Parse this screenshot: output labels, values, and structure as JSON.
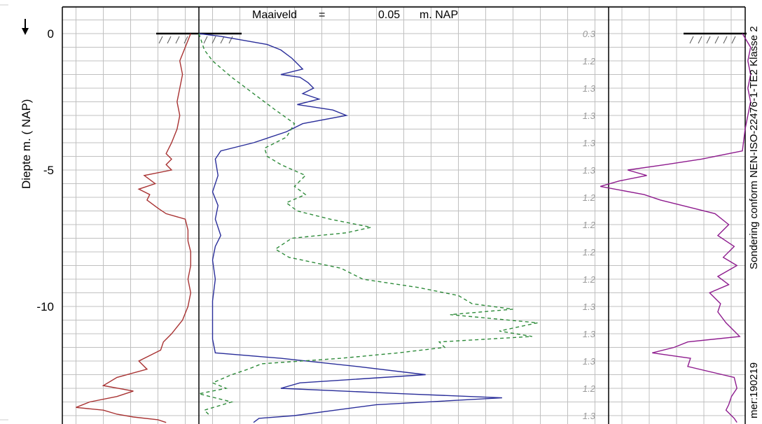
{
  "chart_data": {
    "type": "line",
    "title": "Maaiveld",
    "header": {
      "label": "Maaiveld",
      "equals": "=",
      "value": "0.05",
      "unit": "m. NAP"
    },
    "ylabel": "Diepte m. ( NAP)",
    "depth_ticks": [
      "0",
      "-5",
      "-10"
    ],
    "depth_tick_values": [
      0,
      -5,
      -10
    ],
    "ylim": [
      0.25,
      -14.25
    ],
    "grid": true,
    "side_label_right": "Sondering conform NEN-ISO-22476-1-TE2 Klasse 2",
    "side_label_bottom": "mer:190219",
    "ratio_labels": [
      {
        "depth": 0,
        "text": "0.3"
      },
      {
        "depth": -1,
        "text": "1.2"
      },
      {
        "depth": -2,
        "text": "1.3"
      },
      {
        "depth": -3,
        "text": "1.3"
      },
      {
        "depth": -4,
        "text": "1.3"
      },
      {
        "depth": -5,
        "text": "1.3"
      },
      {
        "depth": -6,
        "text": "1.2"
      },
      {
        "depth": -7,
        "text": "1.2"
      },
      {
        "depth": -8,
        "text": "1.2"
      },
      {
        "depth": -9,
        "text": "1.2"
      },
      {
        "depth": -10,
        "text": "1.3"
      },
      {
        "depth": -11,
        "text": "1.3"
      },
      {
        "depth": -12,
        "text": "1.3"
      },
      {
        "depth": -13,
        "text": "1.2"
      },
      {
        "depth": -14,
        "text": "1.3"
      }
    ],
    "series": [
      {
        "key": "left_red",
        "panel": "main",
        "color": "#a83232",
        "dash": "",
        "x_div": [
          -0.3,
          -0.5,
          -0.7,
          -0.6,
          -0.7,
          -0.8,
          -0.7,
          -0.8,
          -1.0,
          -1.2,
          -1.0,
          -1.2,
          -1.0,
          -2.0,
          -1.6,
          -2.2,
          -1.8,
          -1.9,
          -1.5,
          -1.2,
          -0.5,
          -0.4,
          -0.4,
          -0.3,
          -0.3,
          -0.4,
          -0.3,
          -0.4,
          -0.6,
          -1.0,
          -1.3,
          -1.4,
          -2.2,
          -1.9,
          -3.0,
          -3.5,
          -2.4,
          -3.0,
          -4.0,
          -4.5,
          -3.5,
          -3.0,
          -2.4,
          -1.5,
          -1.2
        ],
        "y": [
          0,
          -0.5,
          -1.0,
          -1.5,
          -2.0,
          -2.5,
          -3.0,
          -3.5,
          -4.0,
          -4.4,
          -4.6,
          -4.8,
          -5.0,
          -5.2,
          -5.5,
          -5.7,
          -5.9,
          -6.1,
          -6.4,
          -6.6,
          -6.8,
          -7.2,
          -7.6,
          -8.0,
          -8.5,
          -9.0,
          -9.5,
          -10.0,
          -10.5,
          -11.0,
          -11.3,
          -11.6,
          -12.0,
          -12.3,
          -12.6,
          -12.9,
          -13.1,
          -13.3,
          -13.5,
          -13.7,
          -13.8,
          -13.95,
          -14.05,
          -14.15,
          -14.25
        ]
      },
      {
        "key": "blue",
        "panel": "main",
        "color": "#2a2e9a",
        "dash": "",
        "x_div": [
          0,
          0.8,
          2.5,
          3.0,
          3.4,
          3.6,
          3.8,
          3.0,
          3.7,
          4.0,
          4.2,
          3.8,
          4.4,
          3.6,
          4.9,
          5.4,
          3.8,
          3.2,
          2.0,
          0.8,
          0.6,
          0.7,
          0.5,
          0.7,
          0.6,
          0.8,
          0.6,
          0.5,
          0.6,
          0.5,
          0.5,
          0.5,
          0.6,
          3.0,
          5.8,
          8.3,
          3.7,
          3.0,
          7.5,
          11.1,
          6.5,
          5.0,
          3.5,
          2.2,
          2.0
        ],
        "y": [
          0,
          -0.1,
          -0.4,
          -0.6,
          -0.9,
          -1.1,
          -1.3,
          -1.5,
          -1.6,
          -1.8,
          -2.0,
          -2.2,
          -2.4,
          -2.6,
          -2.8,
          -3.0,
          -3.3,
          -3.6,
          -4.0,
          -4.3,
          -4.6,
          -5.2,
          -5.8,
          -6.3,
          -6.8,
          -7.4,
          -7.8,
          -8.3,
          -9.0,
          -9.8,
          -10.5,
          -11.2,
          -11.7,
          -11.9,
          -12.2,
          -12.5,
          -12.8,
          -13.0,
          -13.2,
          -13.35,
          -13.6,
          -13.8,
          -14.0,
          -14.1,
          -14.25
        ]
      },
      {
        "key": "green_dashed",
        "panel": "main",
        "color": "#2e8b3a",
        "dash": "5,4",
        "x_div": [
          0,
          0.2,
          0.5,
          1.2,
          2.0,
          2.8,
          3.5,
          3.2,
          2.4,
          2.5,
          3.0,
          3.9,
          3.5,
          3.9,
          3.2,
          3.6,
          4.8,
          6.3,
          5.4,
          3.4,
          2.8,
          3.3,
          5.2,
          6.0,
          8.0,
          9.5,
          10.0,
          11.5,
          9.2,
          12.4,
          11.0,
          12.2,
          8.8,
          9.0,
          7.3,
          5.2,
          2.3,
          1.8,
          1.2,
          0.5,
          1.0,
          0.0,
          1.2,
          0.2,
          0.4
        ],
        "y": [
          0,
          -0.6,
          -1.0,
          -1.6,
          -2.2,
          -2.8,
          -3.3,
          -3.8,
          -4.2,
          -4.5,
          -4.8,
          -5.2,
          -5.6,
          -5.9,
          -6.2,
          -6.5,
          -6.8,
          -7.1,
          -7.3,
          -7.5,
          -7.9,
          -8.2,
          -8.6,
          -9.0,
          -9.3,
          -9.6,
          -9.9,
          -10.1,
          -10.3,
          -10.6,
          -10.9,
          -11.1,
          -11.3,
          -11.5,
          -11.7,
          -11.9,
          -12.1,
          -12.3,
          -12.5,
          -12.8,
          -13.0,
          -13.2,
          -13.5,
          -13.8,
          -14.0
        ]
      },
      {
        "key": "right_purple",
        "panel": "right",
        "color": "#8e1c8e",
        "dash": "",
        "x_div": [
          0,
          0.3,
          0.2,
          0.3,
          0.2,
          0.3,
          0.2,
          0.1,
          0.0,
          -1.5,
          -2.8,
          -4.2,
          -3.5,
          -4.5,
          -5.2,
          -3.6,
          -3.0,
          -2.2,
          -1.0,
          -0.5,
          -0.9,
          -0.3,
          -0.7,
          -0.2,
          -0.9,
          -0.5,
          -1.2,
          -0.8,
          -0.9,
          -0.6,
          -0.2,
          -0.1,
          -2.0,
          -2.5,
          -3.3,
          -1.9,
          -2.0,
          -0.3,
          -0.2,
          -0.4,
          -0.5,
          -0.6,
          -0.4,
          -0.3,
          -0.2
        ],
        "y": [
          0,
          -0.5,
          -1.0,
          -1.5,
          -2.0,
          -2.5,
          -3.0,
          -3.5,
          -4.3,
          -4.6,
          -4.8,
          -5.0,
          -5.2,
          -5.4,
          -5.6,
          -5.9,
          -6.1,
          -6.3,
          -6.6,
          -7.0,
          -7.4,
          -7.8,
          -8.2,
          -8.5,
          -8.9,
          -9.2,
          -9.5,
          -9.9,
          -10.2,
          -10.6,
          -11.0,
          -11.1,
          -11.3,
          -11.5,
          -11.7,
          -11.9,
          -12.2,
          -12.6,
          -13.0,
          -13.3,
          -13.6,
          -13.8,
          -14.0,
          -14.1,
          -14.25
        ]
      }
    ]
  }
}
